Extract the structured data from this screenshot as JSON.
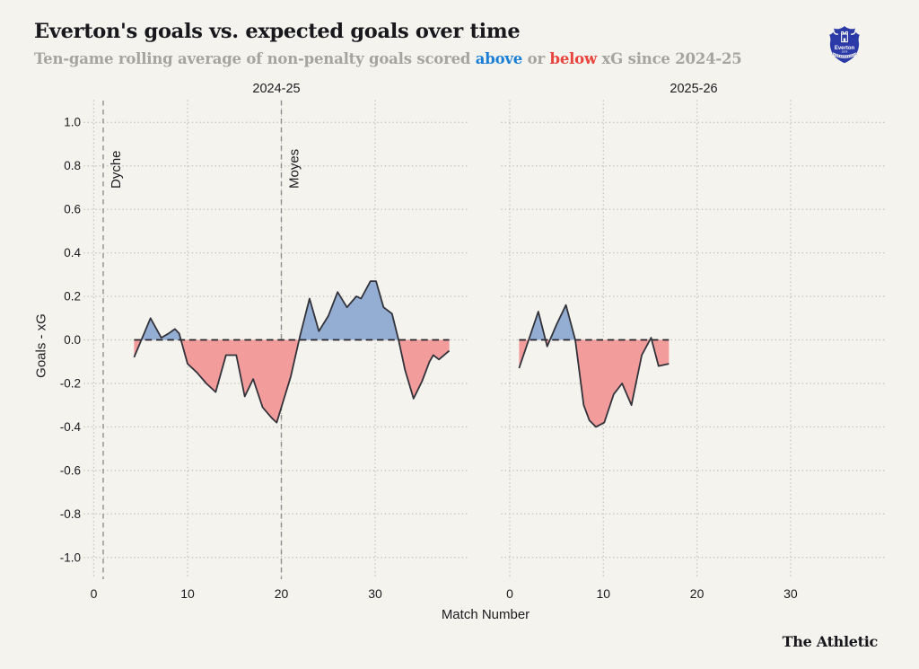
{
  "page": {
    "background": "#F4F3EE"
  },
  "header": {
    "title": "Everton's goals vs. expected goals over time",
    "subtitle": {
      "part1": "Ten-game rolling average of non-penalty goals scored ",
      "above": "above",
      "part2": " or ",
      "below": "below",
      "part3": " xG since 2024-25"
    },
    "badge": {
      "club": "Everton",
      "year": "1878"
    }
  },
  "footer": {
    "brand": "The Athletic"
  },
  "colors": {
    "background": "#F4F3EE",
    "above_fill": "#93AED2",
    "below_fill": "#F29C9B",
    "curve_line": "#32323A",
    "zero_line": "#26262C",
    "grid": "#C5C4BD",
    "manager_line": "#8F8F8F",
    "tick_text": "#1B1B1F",
    "accent_blue": "#1B7FD6",
    "accent_red": "#E8433C",
    "everton_blue": "#2B3AA6"
  },
  "chart_data": {
    "type": "area",
    "title": "Everton's goals vs. expected goals over time",
    "subtitle": "Ten-game rolling average of non-penalty goals scored above or below xG since 2024-25",
    "xlabel": "Match Number",
    "ylabel": "Goals - xG",
    "ylim": [
      -1.1,
      1.1
    ],
    "xlim": [
      -1,
      40
    ],
    "grid": "dotted",
    "zero_line": "dashed",
    "legend": "none",
    "y_ticks": [
      {
        "value": 1.0,
        "label": "1.0"
      },
      {
        "value": 0.8,
        "label": "0.8"
      },
      {
        "value": 0.6,
        "label": "0.6"
      },
      {
        "value": 0.4,
        "label": "0.4"
      },
      {
        "value": 0.2,
        "label": "0.2"
      },
      {
        "value": 0.0,
        "label": "0.0"
      },
      {
        "value": -0.2,
        "label": "-0.2"
      },
      {
        "value": -0.4,
        "label": "-0.4"
      },
      {
        "value": -0.6,
        "label": "-0.6"
      },
      {
        "value": -0.8,
        "label": "-0.8"
      },
      {
        "value": -1.0,
        "label": "-1.0"
      }
    ],
    "panels": [
      {
        "label": "2024-25",
        "x_ticks": [
          0,
          10,
          20,
          30
        ],
        "manager_lines": [
          {
            "label": "Dyche",
            "x": 1
          },
          {
            "label": "Moyes",
            "x": 20
          }
        ],
        "series": {
          "name": "goals-minus-xg-10game-rolling",
          "x": [
            4.3,
            6.05,
            7.2,
            8.0,
            8.65,
            9.1,
            10.0,
            11.0,
            12.0,
            13.0,
            14.1,
            15.2,
            16.1,
            17.0,
            18.0,
            19.0,
            19.5,
            20.0,
            21.0,
            22.0,
            23.0,
            24.0,
            25.0,
            26.0,
            27.0,
            28.0,
            28.5,
            29.5,
            30.1,
            30.9,
            31.8,
            32.5,
            33.2,
            34.1,
            35.0,
            35.8,
            36.2,
            36.8,
            37.9
          ],
          "y": [
            -0.08,
            0.1,
            0.01,
            0.03,
            0.05,
            0.03,
            -0.11,
            -0.15,
            -0.2,
            -0.24,
            -0.07,
            -0.07,
            -0.26,
            -0.18,
            -0.31,
            -0.36,
            -0.38,
            -0.31,
            -0.17,
            0.02,
            0.19,
            0.04,
            0.11,
            0.22,
            0.15,
            0.2,
            0.19,
            0.27,
            0.27,
            0.15,
            0.12,
            0.0,
            -0.14,
            -0.27,
            -0.19,
            -0.1,
            -0.07,
            -0.09,
            -0.05
          ]
        }
      },
      {
        "label": "2025-26",
        "x_ticks": [
          0,
          10,
          20,
          30
        ],
        "manager_lines": [],
        "series": {
          "name": "goals-minus-xg-10game-rolling",
          "x": [
            1.0,
            3.05,
            4.0,
            5.0,
            6.0,
            7.0,
            7.9,
            8.5,
            9.2,
            10.1,
            11.1,
            12.0,
            13.0,
            14.1,
            15.1,
            15.9,
            17.0
          ],
          "y": [
            -0.13,
            0.13,
            -0.03,
            0.07,
            0.16,
            0.0,
            -0.3,
            -0.37,
            -0.4,
            -0.38,
            -0.25,
            -0.2,
            -0.3,
            -0.07,
            0.01,
            -0.12,
            -0.11
          ]
        }
      }
    ]
  }
}
